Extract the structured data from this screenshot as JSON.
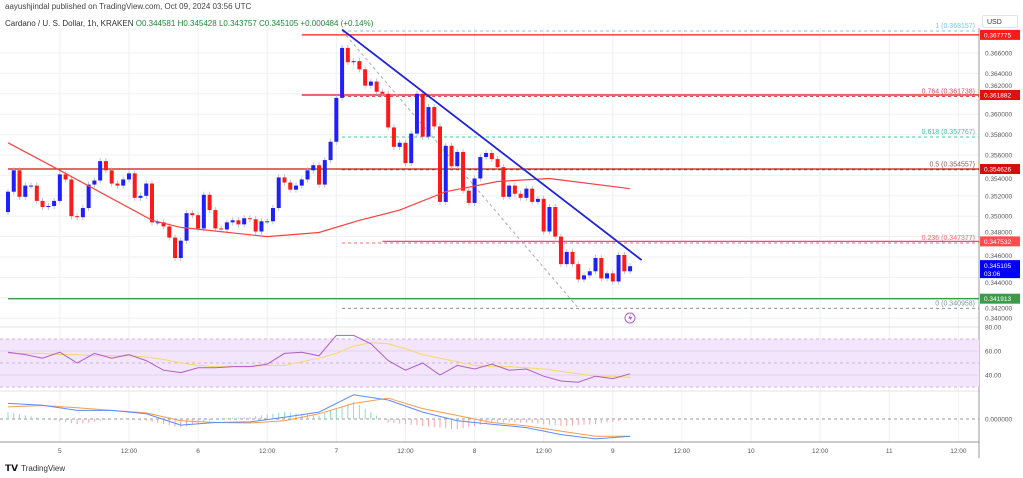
{
  "header": {
    "published": "aayushjindal published on TradingView.com, Oct 09, 2024 03:56 UTC",
    "symbol": "Cardano / U. S. Dollar, 1h, KRAKEN",
    "open": "O0.344581",
    "high": "H0.345428",
    "low": "L0.343757",
    "close": "C0.345105",
    "change": "+0.000484 (+0.14%)"
  },
  "currency_button": "USD",
  "footer": {
    "logo": "TV",
    "brand": "TradingView"
  },
  "colors": {
    "bull": "#1f1fff",
    "bear": "#ff1a1a",
    "ma": "#ff4040",
    "trendline": "#2020e0",
    "rsi": "#b05cc8",
    "rsi_ma": "#f5d76e",
    "macd": "#5b8cff",
    "signal": "#ff9a4d",
    "support": "#3d9a4a",
    "current_price": "#0000ff"
  },
  "icons": {
    "flash": "lightning-bolt-icon",
    "logo": "tradingview-logo-icon"
  },
  "chart_data": {
    "type": "candlestick",
    "interval": "1h",
    "start": "2024-10-04 15:00",
    "first_open": 0.3504,
    "close": [
      0.3524,
      0.3545,
      0.3519,
      0.353,
      0.353,
      0.3515,
      0.3509,
      0.351,
      0.3515,
      0.3541,
      0.3536,
      0.35,
      0.3499,
      0.3508,
      0.3531,
      0.3535,
      0.3554,
      0.3545,
      0.3532,
      0.353,
      0.3536,
      0.3542,
      0.3518,
      0.352,
      0.3532,
      0.3494,
      0.3494,
      0.349,
      0.3479,
      0.3459,
      0.3476,
      0.3503,
      0.3501,
      0.3488,
      0.3521,
      0.3506,
      0.3488,
      0.3487,
      0.3494,
      0.3496,
      0.3492,
      0.3498,
      0.3497,
      0.3485,
      0.3495,
      0.3495,
      0.3508,
      0.3538,
      0.3533,
      0.3526,
      0.353,
      0.3536,
      0.3545,
      0.355,
      0.3531,
      0.3555,
      0.3573,
      0.3616,
      0.3665,
      0.3651,
      0.3652,
      0.3644,
      0.3628,
      0.3632,
      0.3622,
      0.362,
      0.3587,
      0.3568,
      0.3572,
      0.3552,
      0.3581,
      0.362,
      0.3578,
      0.3607,
      0.3588,
      0.3514,
      0.3569,
      0.3549,
      0.3563,
      0.3525,
      0.3513,
      0.3537,
      0.3558,
      0.3562,
      0.3556,
      0.3548,
      0.3519,
      0.353,
      0.3522,
      0.3518,
      0.3527,
      0.3514,
      0.3517,
      0.3485,
      0.3509,
      0.348,
      0.3453,
      0.3465,
      0.3453,
      0.3438,
      0.3442,
      0.3446,
      0.3459,
      0.3439,
      0.3444,
      0.3436,
      0.3462,
      0.3446,
      0.3451
    ],
    "moving_average": [
      {
        "t": "2024-10-04 15:00",
        "v": 0.3572
      },
      {
        "t": "2024-10-05 00:00",
        "v": 0.3545
      },
      {
        "t": "2024-10-05 16:00",
        "v": 0.3496
      },
      {
        "t": "2024-10-05 21:00",
        "v": 0.3489
      },
      {
        "t": "2024-10-06 12:00",
        "v": 0.348
      },
      {
        "t": "2024-10-06 21:00",
        "v": 0.3484
      },
      {
        "t": "2024-10-07 04:00",
        "v": 0.3496
      },
      {
        "t": "2024-10-07 11:00",
        "v": 0.3506
      },
      {
        "t": "2024-10-07 19:00",
        "v": 0.3524
      },
      {
        "t": "2024-10-08 04:00",
        "v": 0.3534
      },
      {
        "t": "2024-10-08 13:00",
        "v": 0.3537
      },
      {
        "t": "2024-10-09 03:00",
        "v": 0.3527
      }
    ],
    "trendline": {
      "from": {
        "t": "2024-10-07 01:00",
        "v": 0.3683
      },
      "to": {
        "t": "2024-10-09 05:00",
        "v": 0.3457
      }
    },
    "fib_trend": {
      "from": {
        "t": "2024-10-07 01:00",
        "v": 0.3682
      },
      "to": {
        "t": "2024-10-08 18:00",
        "v": 0.341
      }
    },
    "horizontal_lines": [
      {
        "price": 0.367775,
        "label": "0.367775",
        "from": "2024-10-06 18:00",
        "color": "#ff1a1a"
      },
      {
        "price": 0.361882,
        "label": "0.361882",
        "from": "2024-10-06 18:00",
        "color": "#e01010"
      },
      {
        "price": 0.354626,
        "label": "0.354626",
        "from": "2024-10-04 15:00",
        "color": "#d01010"
      },
      {
        "price": 0.347532,
        "label": "0.347532",
        "from": "2024-10-07 08:00",
        "color": "#ff4d4d"
      },
      {
        "price": 0.341913,
        "label": "0.341913",
        "from": "2024-10-04 15:00",
        "color": "#3d9a4a"
      }
    ],
    "fib_levels": [
      {
        "label": "1 (0.368157)",
        "price": 0.368157,
        "color": "#7fbfea"
      },
      {
        "label": "0.764 (0.361738)",
        "price": 0.361738,
        "color": "#d05050"
      },
      {
        "label": "0.618 (0.357767)",
        "price": 0.357767,
        "color": "#3cc9a0"
      },
      {
        "label": "0.5 (0.354557)",
        "price": 0.354557,
        "color": "#8a5a5a"
      },
      {
        "label": "0.236 (0.347377)",
        "price": 0.347377,
        "color": "#f06a6a"
      },
      {
        "label": "0 (0.340958)",
        "price": 0.340958,
        "color": "#8a8e99"
      }
    ],
    "fib_start": "2024-10-07 01:00",
    "current_price": {
      "label": "0.345105",
      "countdown": "03:06",
      "price": 0.345105
    },
    "price_ticks": [
      "0.366000",
      "0.364000",
      "0.362000",
      "0.360000",
      "0.358000",
      "0.356000",
      "0.354000",
      "0.352000",
      "0.350000",
      "0.348000",
      "0.346000",
      "0.344000",
      "0.342000",
      "0.340000"
    ],
    "price_tick_values": [
      0.366,
      0.364,
      0.362,
      0.36,
      0.358,
      0.356,
      0.354,
      0.352,
      0.35,
      0.348,
      0.346,
      0.344,
      0.342,
      0.34
    ],
    "time_ticks": [
      "5",
      "12:00",
      "6",
      "12:00",
      "7",
      "12:00",
      "8",
      "12:00",
      "9",
      "12:00",
      "10",
      "12:00",
      "11",
      "12:00"
    ],
    "rsi": {
      "ticks": [
        "80.00",
        "60.00",
        "40.00"
      ],
      "tick_values": [
        80,
        60,
        40
      ],
      "band": [
        30,
        70
      ],
      "step_hours": 3,
      "values": [
        59,
        57,
        54,
        59,
        50,
        58,
        54,
        57,
        52,
        44,
        42,
        46,
        46,
        47,
        47,
        49,
        58,
        59,
        56,
        73,
        73,
        66,
        52,
        44,
        50,
        40,
        48,
        45,
        49,
        44,
        45,
        39,
        35,
        34,
        39,
        37,
        41
      ],
      "ma": [
        58,
        58,
        58,
        57,
        57,
        56,
        56,
        56,
        55,
        53,
        50,
        48,
        47,
        47,
        47,
        48,
        48,
        51,
        54,
        58,
        64,
        67,
        66,
        62,
        57,
        54,
        51,
        48,
        47,
        47,
        46,
        45,
        43,
        41,
        39,
        39,
        38
      ]
    },
    "macd": {
      "ticks": [
        "0.000000"
      ],
      "step_hours": 6,
      "macd": [
        0.0009,
        0.0008,
        0.0005,
        0.0005,
        0.0003,
        -0.00035,
        -0.0002,
        -0.00017,
        0.0001,
        0.0004,
        0.0014,
        0.0011,
        0.0004,
        -0.0001,
        -0.0003,
        -0.0005,
        -0.0009,
        -0.00115,
        -0.001
      ],
      "signal": [
        0.0007,
        0.00078,
        0.00065,
        0.0005,
        0.00035,
        -0.0001,
        -0.0002,
        -0.00023,
        -0.0001,
        0.0003,
        0.0009,
        0.0012,
        0.0006,
        0.0002,
        -0.0002,
        -0.0004,
        -0.0007,
        -0.001,
        -0.001
      ]
    }
  }
}
